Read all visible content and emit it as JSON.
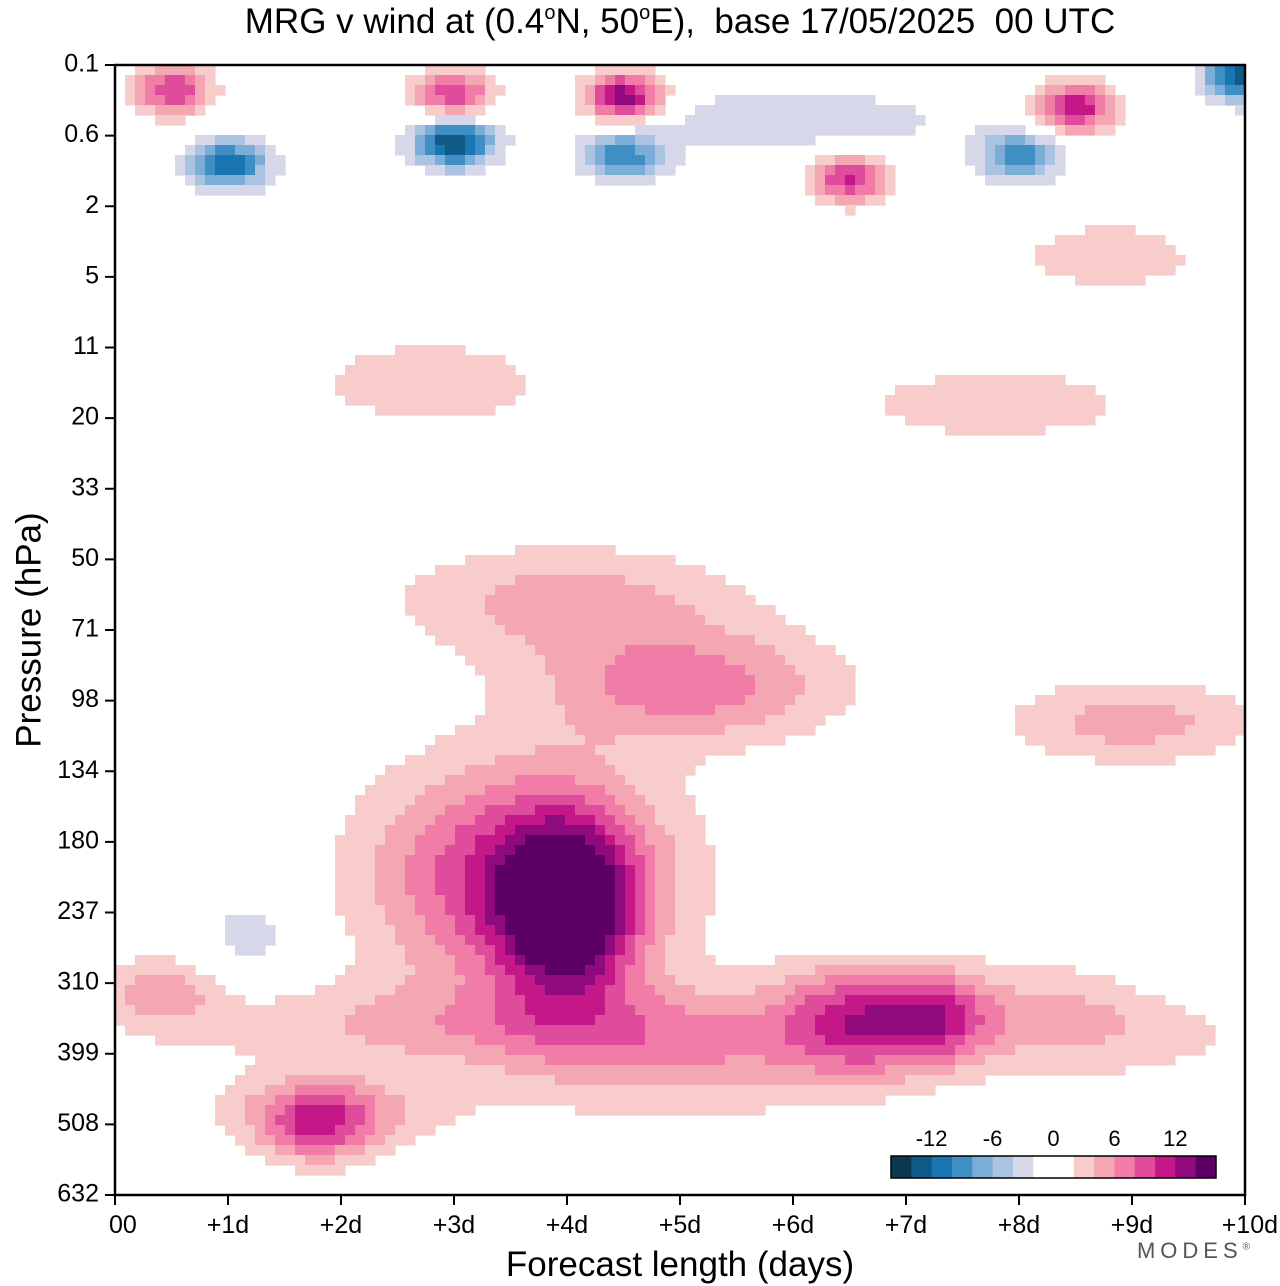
{
  "title": {
    "prefix": "MRG v wind at (0.4",
    "deg1": "o",
    "mid": "N, 50",
    "deg2": "o",
    "suffix": "E),  base 17/05/2025  00 UTC"
  },
  "brand": "MODES",
  "brand_mark": "®",
  "chart_data": {
    "type": "heatmap",
    "title": "MRG v wind at (0.4°N, 50°E),  base 17/05/2025  00 UTC",
    "xlabel": "Forecast length (days)",
    "ylabel": "Pressure (hPa)",
    "x_ticks": [
      "00",
      "+1d",
      "+2d",
      "+3d",
      "+4d",
      "+5d",
      "+6d",
      "+7d",
      "+8d",
      "+9d",
      "+10d"
    ],
    "x_range_days": [
      0,
      10
    ],
    "y_ticks": [
      "0.1",
      "0.6",
      "2",
      "5",
      "11",
      "20",
      "33",
      "50",
      "71",
      "98",
      "134",
      "180",
      "237",
      "310",
      "399",
      "508",
      "632"
    ],
    "y_top": "0.1",
    "y_bottom": "632",
    "colorbar": {
      "tick_labels": [
        "-12",
        "-6",
        "0",
        "6",
        "12"
      ],
      "levels": [
        -16,
        -14,
        -12,
        -10,
        -8,
        -6,
        -4,
        -2,
        0,
        2,
        4,
        6,
        8,
        10,
        12,
        14,
        16
      ],
      "colors": [
        "#0c3850",
        "#0f5a86",
        "#1a76b3",
        "#3f8fc4",
        "#7aaed6",
        "#a9c3e1",
        "#d7d7ea",
        "#ffffff",
        "#ffffff",
        "#f8cccb",
        "#f4a6b3",
        "#f07ca7",
        "#e04c9c",
        "#c41889",
        "#8e0a7d",
        "#5d0066"
      ]
    },
    "features": [
      {
        "x": 4.0,
        "lev": 12,
        "v": 14,
        "rx": 0.55,
        "ry": 1.2
      },
      {
        "x": 3.6,
        "lev": 11.5,
        "v": 11,
        "rx": 1.3,
        "ry": 1.6
      },
      {
        "x": 1.8,
        "lev": 15,
        "v": 8,
        "rx": 0.5,
        "ry": 0.55
      },
      {
        "x": 5.1,
        "lev": 8.8,
        "v": 7,
        "rx": 1.3,
        "ry": 0.8
      },
      {
        "x": 6.6,
        "lev": 13.5,
        "v": 9,
        "rx": 0.7,
        "ry": 0.8
      },
      {
        "x": 7.3,
        "lev": 13.5,
        "v": 6,
        "rx": 0.45,
        "ry": 0.6
      },
      {
        "x": 5.0,
        "lev": 14.0,
        "v": 5,
        "rx": 1.5,
        "ry": 0.9
      },
      {
        "x": 3.0,
        "lev": 13.6,
        "v": 4,
        "rx": 2.6,
        "ry": 0.6
      },
      {
        "x": 1.9,
        "lev": 14.8,
        "v": 4,
        "rx": 1.2,
        "ry": 0.55
      },
      {
        "x": 8.6,
        "lev": 13.5,
        "v": 5,
        "rx": 1.8,
        "ry": 0.8
      },
      {
        "x": 4.0,
        "lev": 7.6,
        "v": 5,
        "rx": 1.5,
        "ry": 0.8
      },
      {
        "x": 2.8,
        "lev": 4.5,
        "v": 3,
        "rx": 1.3,
        "ry": 0.8
      },
      {
        "x": 7.8,
        "lev": 4.8,
        "v": 4,
        "rx": 1.2,
        "ry": 0.5
      },
      {
        "x": 8.8,
        "lev": 2.7,
        "v": 3,
        "rx": 1.0,
        "ry": 0.6
      },
      {
        "x": 9.0,
        "lev": 9.3,
        "v": 5,
        "rx": 1.1,
        "ry": 0.6
      },
      {
        "x": 0.4,
        "lev": 13.1,
        "v": 5,
        "rx": 0.5,
        "ry": 0.5
      },
      {
        "x": 6.8,
        "lev": 11.5,
        "v": -2,
        "rx": 0.5,
        "ry": 1.5
      },
      {
        "x": 1.2,
        "lev": 12.3,
        "v": -3,
        "rx": 0.5,
        "ry": 0.6
      },
      {
        "x": 6.0,
        "lev": 0.8,
        "v": -3,
        "rx": 1.8,
        "ry": 0.6
      },
      {
        "x": 9.6,
        "lev": 12.8,
        "v": -3,
        "rx": 0.8,
        "ry": 0.9
      },
      {
        "x": 0.6,
        "lev": 15.5,
        "v": -2,
        "rx": 0.3,
        "ry": 0.7
      }
    ],
    "upper_features": [
      {
        "x": 0.5,
        "lev": 0.35,
        "v": 10
      },
      {
        "x": 3.0,
        "lev": 0.42,
        "v": 10
      },
      {
        "x": 4.5,
        "lev": 0.45,
        "v": 14
      },
      {
        "x": 6.5,
        "lev": 1.6,
        "v": 11
      },
      {
        "x": 8.5,
        "lev": 0.6,
        "v": 12
      },
      {
        "x": 1.0,
        "lev": 1.4,
        "v": -12
      },
      {
        "x": 3.0,
        "lev": 1.1,
        "v": -14
      },
      {
        "x": 4.5,
        "lev": 1.3,
        "v": -9
      },
      {
        "x": 8.0,
        "lev": 1.3,
        "v": -9
      },
      {
        "x": 10.0,
        "lev": 0.15,
        "v": -14
      }
    ]
  }
}
